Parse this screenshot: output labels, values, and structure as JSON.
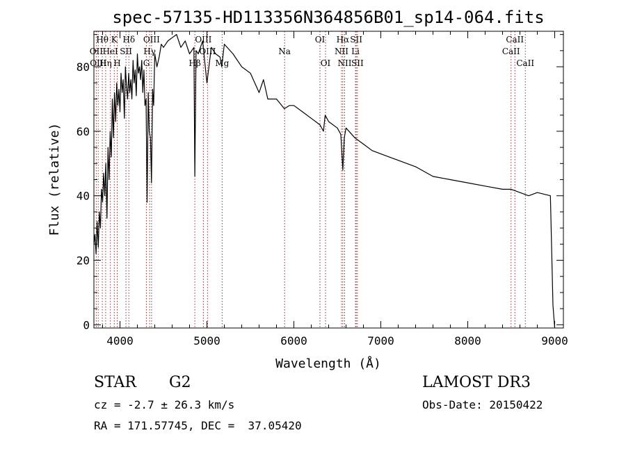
{
  "chart_data": {
    "type": "line",
    "title": "spec-57135-HD113356N364856B01_sp14-064.fits",
    "xlabel": "Wavelength (Å)",
    "ylabel": "Flux (relative)",
    "xlim": [
      3700,
      9100
    ],
    "ylim": [
      -1,
      91
    ],
    "xticks": [
      4000,
      5000,
      6000,
      7000,
      8000,
      9000
    ],
    "yticks": [
      0,
      20,
      40,
      60,
      80
    ],
    "series": [
      {
        "name": "flux",
        "x": [
          3700,
          3712,
          3725,
          3737,
          3750,
          3762,
          3775,
          3787,
          3800,
          3812,
          3825,
          3837,
          3850,
          3862,
          3875,
          3887,
          3900,
          3912,
          3925,
          3937,
          3950,
          3962,
          3975,
          3987,
          4000,
          4012,
          4025,
          4037,
          4050,
          4062,
          4075,
          4087,
          4100,
          4112,
          4125,
          4137,
          4150,
          4162,
          4175,
          4187,
          4200,
          4212,
          4225,
          4237,
          4250,
          4262,
          4275,
          4287,
          4300,
          4312,
          4325,
          4337,
          4350,
          4362,
          4375,
          4387,
          4400,
          4425,
          4450,
          4475,
          4500,
          4550,
          4600,
          4650,
          4700,
          4750,
          4800,
          4850,
          4861,
          4875,
          4900,
          4950,
          5000,
          5050,
          5100,
          5150,
          5170,
          5200,
          5300,
          5400,
          5500,
          5600,
          5650,
          5700,
          5800,
          5890,
          5950,
          6000,
          6100,
          6200,
          6300,
          6340,
          6360,
          6400,
          6500,
          6540,
          6563,
          6580,
          6600,
          6700,
          6800,
          6900,
          7000,
          7200,
          7400,
          7600,
          7800,
          8000,
          8200,
          8400,
          8500,
          8600,
          8700,
          8800,
          8950,
          8980,
          9000
        ],
        "y": [
          25,
          28,
          22,
          32,
          24,
          35,
          30,
          42,
          38,
          47,
          40,
          50,
          33,
          55,
          45,
          60,
          52,
          70,
          58,
          72,
          63,
          75,
          68,
          73,
          66,
          78,
          72,
          76,
          64,
          80,
          74,
          70,
          78,
          72,
          76,
          70,
          82,
          75,
          79,
          71,
          84,
          78,
          80,
          76,
          82,
          72,
          79,
          68,
          70,
          38,
          72,
          60,
          58,
          44,
          73,
          68,
          84,
          80,
          83,
          87,
          86,
          88,
          89,
          90,
          86,
          88,
          84,
          86,
          46,
          85,
          84,
          88,
          75,
          86,
          84,
          83,
          80,
          87,
          84,
          80,
          78,
          72,
          76,
          70,
          70,
          67,
          68,
          68,
          66,
          64,
          62,
          60,
          65,
          63,
          61,
          59,
          48,
          58,
          61,
          58,
          56,
          54,
          53,
          51,
          49,
          46,
          45,
          44,
          43,
          42,
          42,
          41,
          40,
          41,
          40,
          6,
          -1
        ]
      }
    ],
    "line_labels": [
      {
        "label": "Hθ",
        "x": 3797,
        "row": 1
      },
      {
        "label": "OII",
        "x": 3727,
        "row": 2
      },
      {
        "label": "OIII",
        "x": 3750,
        "row": 3
      },
      {
        "label": "Hη",
        "x": 3835,
        "row": 3
      },
      {
        "label": "K",
        "x": 3934,
        "row": 1
      },
      {
        "label": "HeI",
        "x": 3889,
        "row": 2
      },
      {
        "label": "SII",
        "x": 4069,
        "row": 2
      },
      {
        "label": "H",
        "x": 3968,
        "row": 3
      },
      {
        "label": "Hδ",
        "x": 4102,
        "row": 1
      },
      {
        "label": "OIII",
        "x": 4363,
        "row": 1
      },
      {
        "label": "Hγ",
        "x": 4341,
        "row": 2
      },
      {
        "label": "G",
        "x": 4304,
        "row": 3
      },
      {
        "label": "OIII",
        "x": 4959,
        "row": 1
      },
      {
        "label": "OIII",
        "x": 5007,
        "row": 2
      },
      {
        "label": "Hβ",
        "x": 4861,
        "row": 3
      },
      {
        "label": "Mg",
        "x": 5175,
        "row": 3
      },
      {
        "label": "Na",
        "x": 5893,
        "row": 2
      },
      {
        "label": "OI",
        "x": 6300,
        "row": 1
      },
      {
        "label": "OI",
        "x": 6364,
        "row": 3
      },
      {
        "label": "Hα",
        "x": 6563,
        "row": 1
      },
      {
        "label": "NII",
        "x": 6548,
        "row": 2
      },
      {
        "label": "NII",
        "x": 6584,
        "row": 3
      },
      {
        "label": "SII",
        "x": 6717,
        "row": 1
      },
      {
        "label": "Li",
        "x": 6708,
        "row": 2
      },
      {
        "label": "SII",
        "x": 6731,
        "row": 3
      },
      {
        "label": "CaII",
        "x": 8542,
        "row": 1
      },
      {
        "label": "CaII",
        "x": 8498,
        "row": 2
      },
      {
        "label": "CaII",
        "x": 8662,
        "row": 3
      }
    ]
  },
  "info": {
    "object_class": "STAR",
    "subclass": "G2",
    "survey": "LAMOST DR3",
    "redshift": "cz = -2.7 ± 26.3 km/s",
    "obs_date": "Obs-Date: 20150422",
    "coords": "RA = 171.57745, DEC =  37.05420"
  },
  "colors": {
    "line_markers": "#b22222",
    "spectrum": "#000000",
    "axes": "#000000"
  }
}
